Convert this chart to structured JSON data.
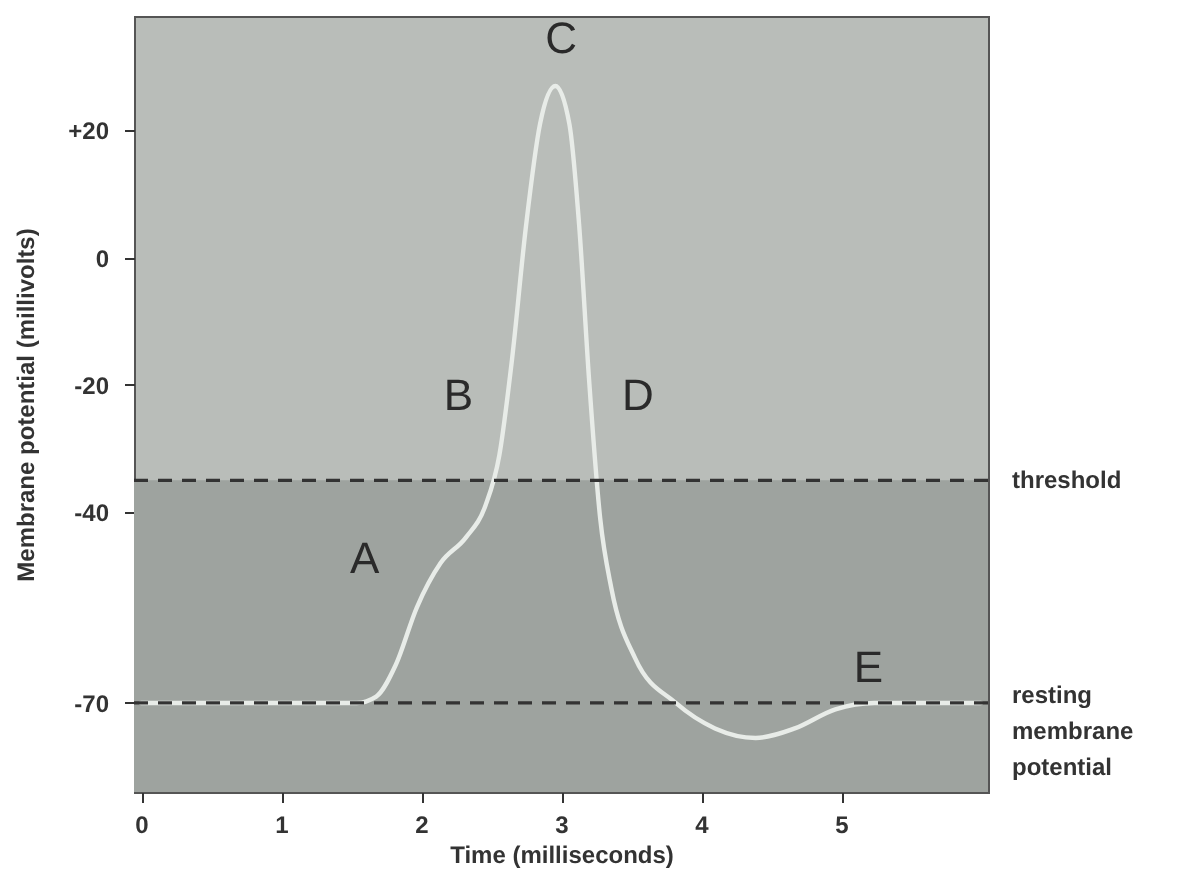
{
  "chart_data": {
    "type": "line",
    "xlabel": "Time (milliseconds)",
    "ylabel": "Membrane potential (millivolts)",
    "x": [
      0,
      1.54,
      1.68,
      1.82,
      1.97,
      2.14,
      2.32,
      2.46,
      2.56,
      2.65,
      2.75,
      2.85,
      2.96,
      3.06,
      3.13,
      3.2,
      3.28,
      3.36,
      3.53,
      3.82,
      4.1,
      4.39,
      4.67,
      4.96,
      5.24,
      6
    ],
    "series": [
      {
        "color": "#e8ece8",
        "values": [
          -70,
          -70,
          -69,
          -64,
          -55,
          -48,
          -44,
          -39,
          -31,
          -16,
          5,
          21,
          27,
          21,
          5,
          -19,
          -41,
          -52,
          -63,
          -70,
          -74,
          -75.5,
          -74,
          -71,
          -70,
          -70
        ]
      }
    ],
    "xlim": [
      -0.05,
      6.05
    ],
    "xticks": [
      0,
      1,
      2,
      3,
      4,
      5
    ],
    "ylim": [
      -84,
      38
    ],
    "yticks": [
      {
        "value": 20,
        "label": "+20"
      },
      0,
      -20,
      -40,
      -70
    ],
    "grid": false,
    "marker": "none",
    "line_style": "solid",
    "bands": [
      {
        "axis": "y",
        "from": -84,
        "to": -35,
        "color": "#9ea39f"
      }
    ],
    "ref_lines": [
      {
        "axis": "y",
        "value": -35,
        "label": "threshold",
        "color": "#333333",
        "line_style": "dashed"
      },
      {
        "axis": "y",
        "value": -70,
        "label": "resting membrane potential",
        "color": "#333333",
        "line_style": "dashed"
      }
    ],
    "annotations": [
      "A",
      "B",
      "C",
      "D",
      "E"
    ]
  }
}
